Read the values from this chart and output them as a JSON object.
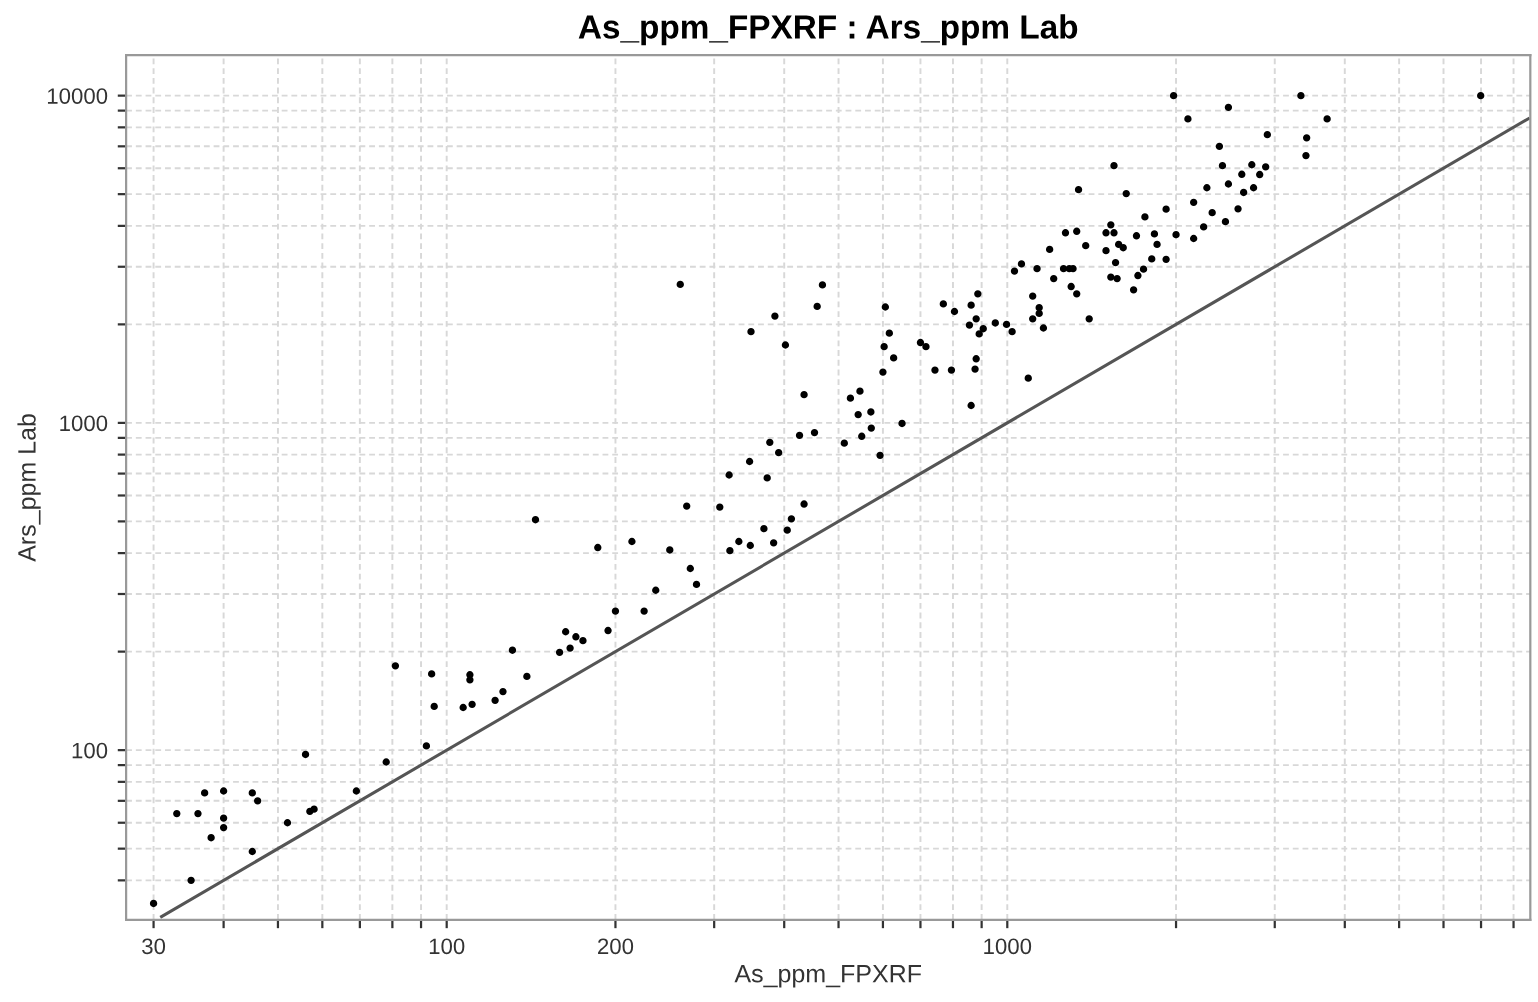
{
  "chart_data": {
    "type": "scatter",
    "title": "As_ppm_FPXRF : Ars_ppm Lab",
    "xlabel": "As_ppm_FPXRF",
    "ylabel": "Ars_ppm Lab",
    "log": "xy",
    "grid": true,
    "legend": false,
    "marker": "circle",
    "xlim": [
      26.8,
      8570
    ],
    "ylim": [
      30.3,
      13300
    ],
    "xticks": [
      30,
      {
        "value": 40,
        "label": null
      },
      {
        "value": 50,
        "label": null
      },
      {
        "value": 60,
        "label": null
      },
      {
        "value": 70,
        "label": null
      },
      {
        "value": 80,
        "label": null
      },
      {
        "value": 90,
        "label": null
      },
      100,
      200,
      {
        "value": 300,
        "label": null
      },
      {
        "value": 400,
        "label": null
      },
      {
        "value": 500,
        "label": null
      },
      {
        "value": 600,
        "label": null
      },
      {
        "value": 700,
        "label": null
      },
      {
        "value": 800,
        "label": null
      },
      {
        "value": 900,
        "label": null
      },
      1000,
      {
        "value": 2000,
        "label": null
      },
      {
        "value": 3000,
        "label": null
      },
      {
        "value": 4000,
        "label": null
      },
      {
        "value": 5000,
        "label": null
      },
      {
        "value": 6000,
        "label": null
      },
      {
        "value": 7000,
        "label": null
      },
      {
        "value": 8000,
        "label": null
      }
    ],
    "yticks": [
      {
        "value": 40,
        "label": null
      },
      {
        "value": 50,
        "label": null
      },
      {
        "value": 60,
        "label": null
      },
      {
        "value": 70,
        "label": null
      },
      {
        "value": 80,
        "label": null
      },
      {
        "value": 90,
        "label": null
      },
      100,
      {
        "value": 200,
        "label": null
      },
      {
        "value": 300,
        "label": null
      },
      {
        "value": 400,
        "label": null
      },
      {
        "value": 500,
        "label": null
      },
      {
        "value": 600,
        "label": null
      },
      {
        "value": 700,
        "label": null
      },
      {
        "value": 800,
        "label": null
      },
      {
        "value": 900,
        "label": null
      },
      1000,
      {
        "value": 2000,
        "label": null
      },
      {
        "value": 3000,
        "label": null
      },
      {
        "value": 4000,
        "label": null
      },
      {
        "value": 5000,
        "label": null
      },
      {
        "value": 6000,
        "label": null
      },
      {
        "value": 7000,
        "label": null
      },
      {
        "value": 8000,
        "label": null
      },
      {
        "value": 9000,
        "label": null
      },
      10000
    ],
    "series": [
      {
        "color": "#000000",
        "x": [
          30,
          33,
          35,
          36,
          37,
          38,
          40,
          40,
          40,
          45,
          46,
          45,
          52,
          56,
          57,
          58,
          69,
          78,
          81,
          92,
          94,
          95,
          107,
          110,
          110,
          111,
          122,
          126,
          131,
          139,
          159,
          166,
          261,
          468,
          458,
          385,
          349,
          402,
          434,
          426,
          453,
          377,
          391,
          347,
          319,
          373,
          268,
          307,
          144,
          434,
          186,
          214,
          250,
          272,
          279,
          320,
          332,
          348,
          368,
          383,
          405,
          412,
          236,
          200,
          225,
          194,
          163,
          170,
          175,
          606,
          616,
          603,
          627,
          600,
          525,
          546,
          542,
          571,
          572,
          550,
          512,
          649,
          593,
          700,
          716,
          743,
          795,
          769,
          805,
          862,
          876,
          880,
          891,
          856,
          906,
          880,
          862,
          886,
          952,
          997,
          1020,
          1090,
          1110,
          1110,
          1140,
          1140,
          1160,
          1030,
          1060,
          1130,
          1210,
          1400,
          1260,
          1290,
          1310,
          1300,
          1330,
          1980,
          2100,
          2480,
          3340,
          3720,
          3420,
          3410,
          6990,
          2910,
          2390,
          2420,
          2730,
          2890,
          2620,
          2820,
          2480,
          2750,
          2640,
          2270,
          2150,
          1920,
          2320,
          2580,
          2240,
          2450,
          2150,
          2000,
          1760,
          1630,
          1550,
          1340,
          1920,
          1810,
          1750,
          1710,
          1680,
          1850,
          1830,
          1700,
          1610,
          1580,
          1530,
          1500,
          1550,
          1500,
          1560,
          1530,
          1570,
          1380,
          1330,
          1270,
          1190
        ],
        "values": [
          34,
          64,
          40,
          64,
          74,
          54,
          75,
          62,
          58,
          74,
          70,
          49,
          60,
          97,
          65,
          66,
          75,
          92,
          181,
          103,
          171,
          136,
          135,
          170,
          164,
          138,
          142,
          151,
          202,
          168,
          199,
          205,
          2650,
          2640,
          2270,
          2120,
          1900,
          1730,
          1220,
          916,
          934,
          872,
          811,
          762,
          693,
          679,
          557,
          553,
          506,
          565,
          416,
          434,
          409,
          359,
          321,
          407,
          434,
          422,
          475,
          430,
          470,
          509,
          308,
          266,
          266,
          232,
          230,
          222,
          216,
          2260,
          1880,
          1710,
          1580,
          1430,
          1190,
          1250,
          1060,
          1080,
          964,
          910,
          867,
          996,
          796,
          1760,
          1710,
          1450,
          1450,
          2310,
          2190,
          1130,
          1460,
          1570,
          1870,
          1990,
          1940,
          2080,
          2290,
          2480,
          2020,
          2000,
          1900,
          1370,
          2440,
          2080,
          2250,
          2160,
          1950,
          2910,
          3060,
          2960,
          2760,
          2080,
          2960,
          2960,
          2960,
          2610,
          2480,
          10000,
          8490,
          9210,
          10000,
          8490,
          7430,
          6560,
          10000,
          7600,
          7000,
          6110,
          6150,
          6060,
          5750,
          5740,
          5370,
          5230,
          5060,
          5230,
          4720,
          4500,
          4390,
          4510,
          3970,
          4120,
          3660,
          3760,
          4260,
          5020,
          6110,
          5160,
          3160,
          3170,
          2950,
          2820,
          2550,
          3510,
          3780,
          3730,
          3430,
          3510,
          4030,
          3810,
          3810,
          3360,
          3090,
          2790,
          2760,
          3480,
          3850,
          3810,
          3390
        ]
      },
      {
        "type": "line",
        "color": "#555555",
        "x": [
          31,
          8500
        ],
        "values": [
          31,
          8500
        ],
        "marker": "none",
        "line_style": "solid"
      }
    ]
  }
}
